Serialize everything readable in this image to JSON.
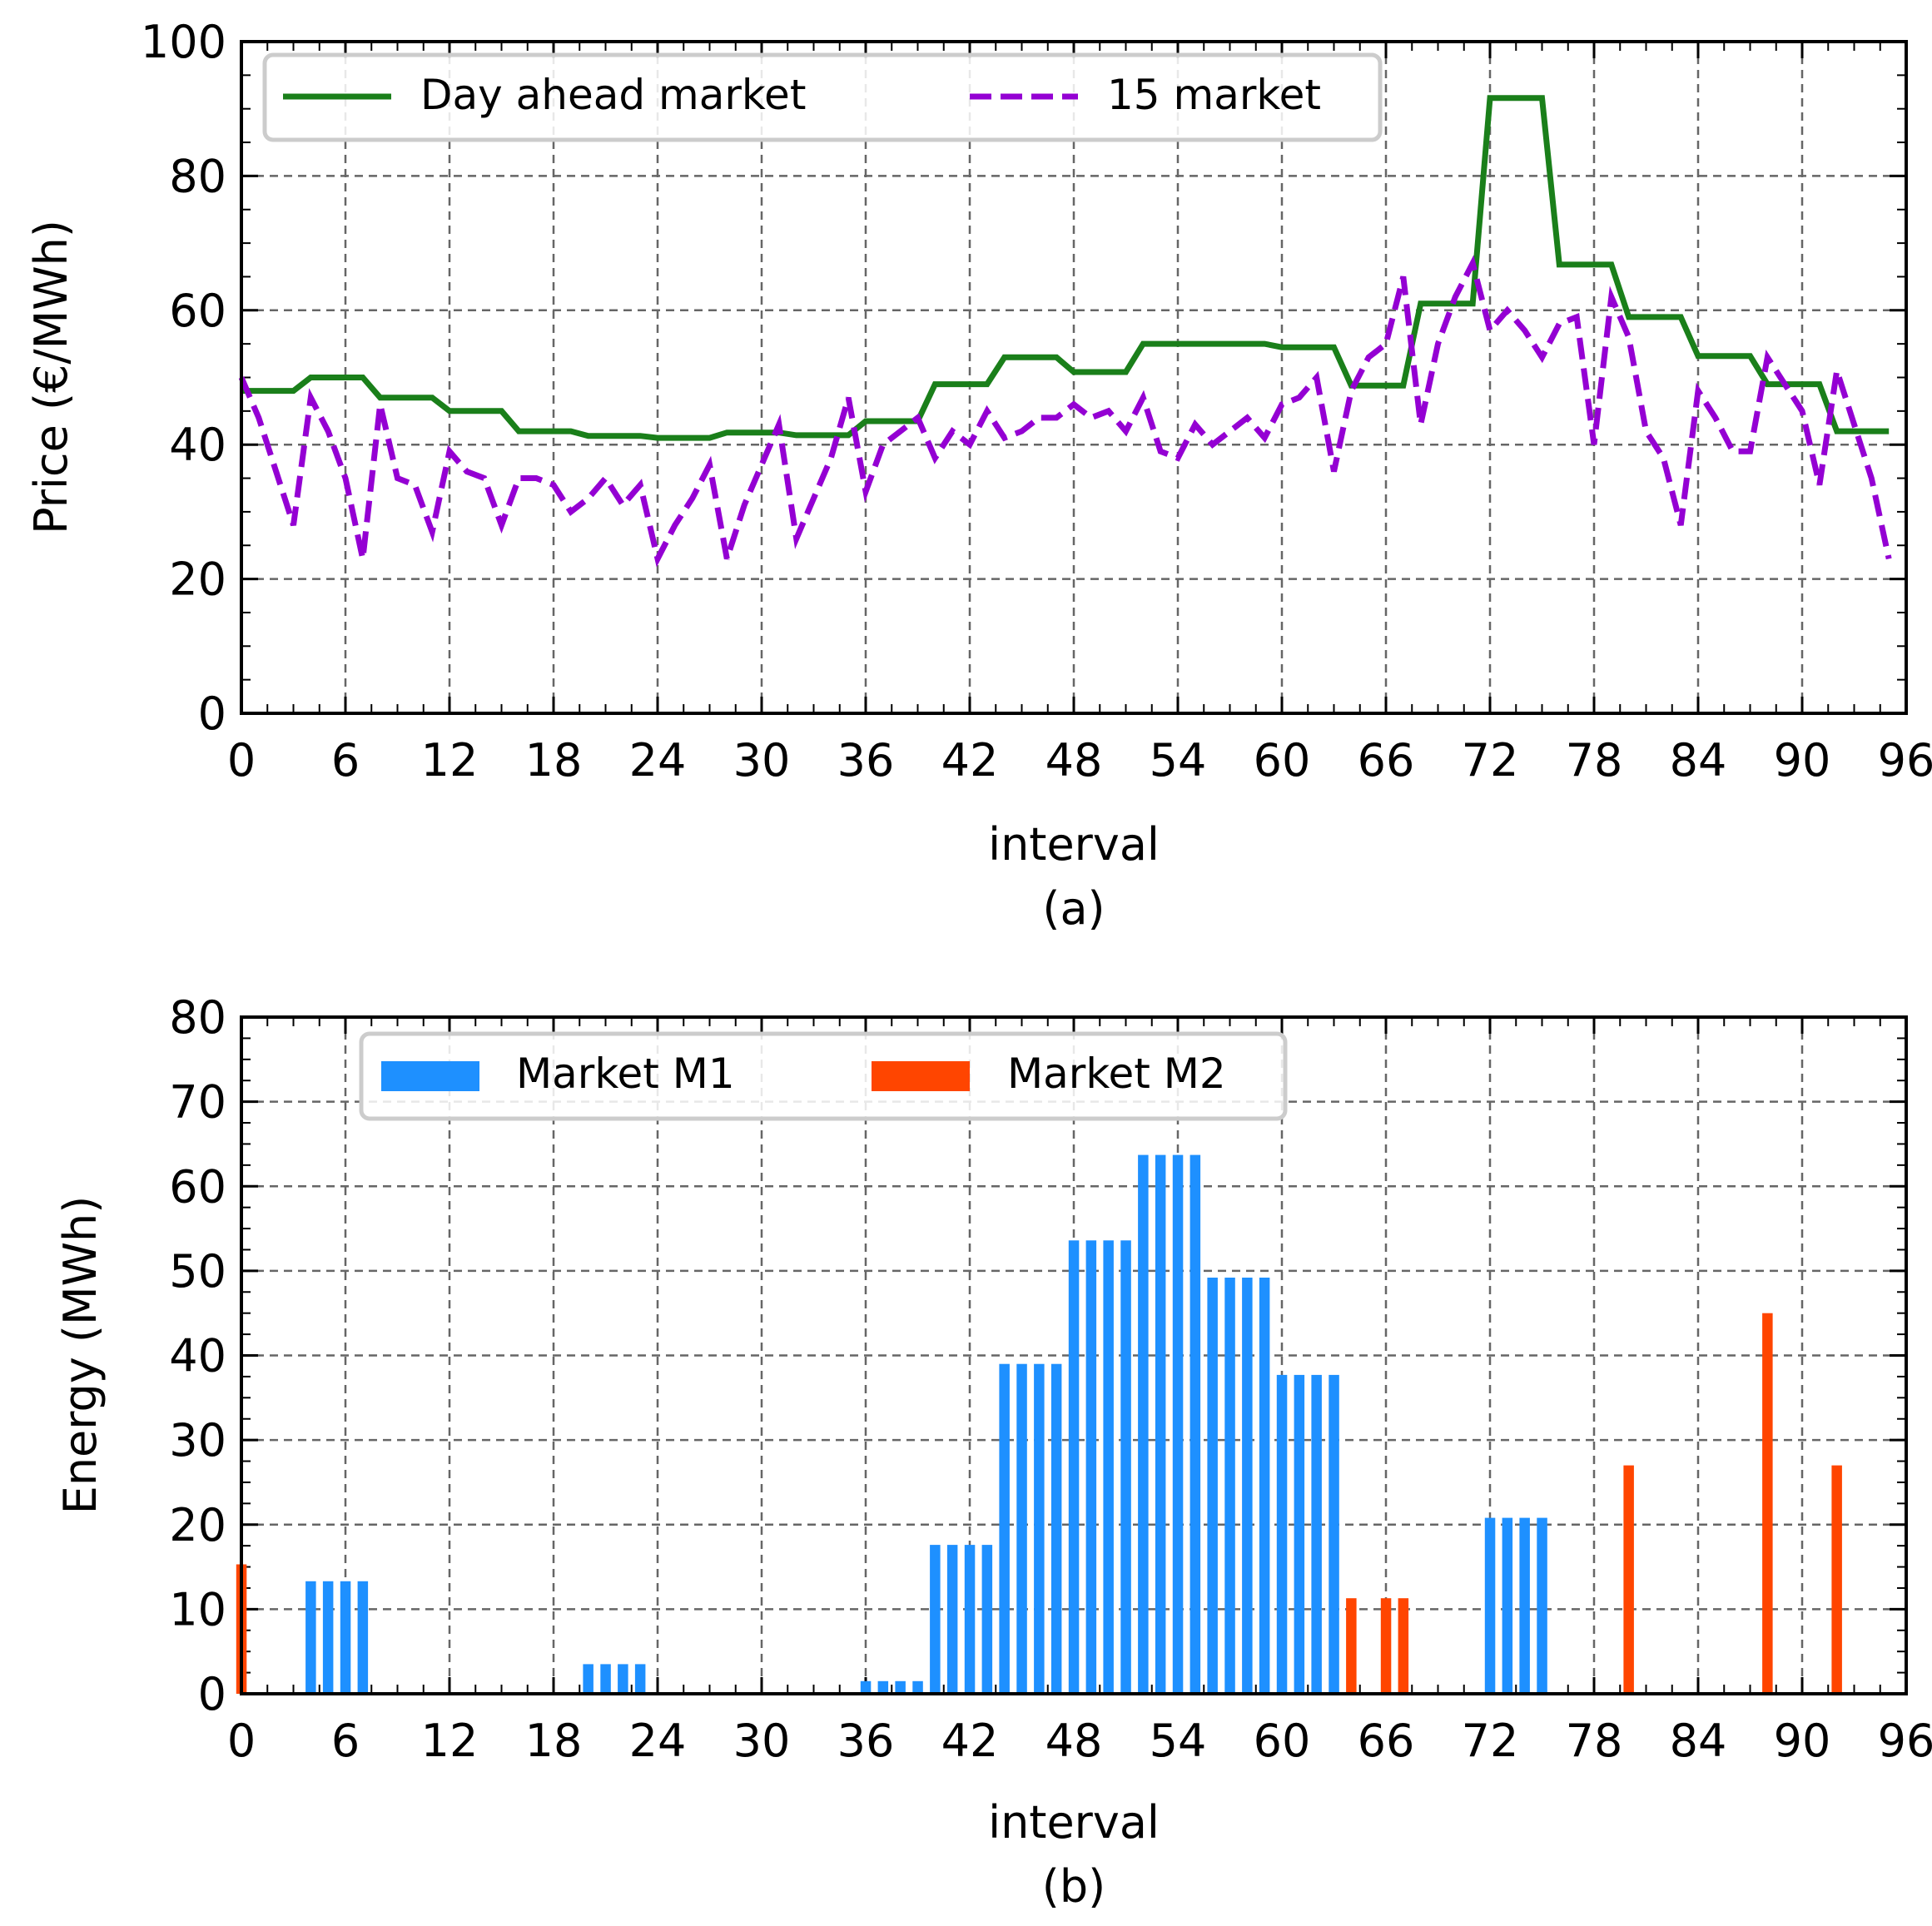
{
  "chart_data": [
    {
      "type": "line",
      "subplot_label": "(a)",
      "title": "",
      "xlabel": "interval",
      "ylabel": "Price (€/MWh)",
      "xlim": [
        0,
        96
      ],
      "ylim": [
        0,
        100
      ],
      "xticks": [
        0,
        6,
        12,
        18,
        24,
        30,
        36,
        42,
        48,
        54,
        60,
        66,
        72,
        78,
        84,
        90,
        96
      ],
      "yticks": [
        0,
        20,
        40,
        60,
        80,
        100
      ],
      "grid": true,
      "legend": "top-left",
      "colors": {
        "day_ahead": "#1a7f1a",
        "fifteen": "#9400d3"
      },
      "series": [
        {
          "name": "Day ahead market",
          "style": "solid",
          "x": [
            0,
            1,
            2,
            3,
            4,
            5,
            6,
            7,
            8,
            9,
            10,
            11,
            12,
            13,
            14,
            15,
            16,
            17,
            18,
            19,
            20,
            21,
            22,
            23,
            24,
            25,
            26,
            27,
            28,
            29,
            30,
            31,
            32,
            33,
            34,
            35,
            36,
            37,
            38,
            39,
            40,
            41,
            42,
            43,
            44,
            45,
            46,
            47,
            48,
            49,
            50,
            51,
            52,
            53,
            54,
            55,
            56,
            57,
            58,
            59,
            60,
            61,
            62,
            63,
            64,
            65,
            66,
            67,
            68,
            69,
            70,
            71,
            72,
            73,
            74,
            75,
            76,
            77,
            78,
            79,
            80,
            81,
            82,
            83,
            84,
            85,
            86,
            87,
            88,
            89,
            90,
            91,
            92,
            93,
            94,
            95
          ],
          "values": [
            48,
            48,
            48,
            48,
            50,
            50,
            50,
            50,
            47,
            47,
            47,
            47,
            45,
            45,
            45,
            45,
            42,
            42,
            42,
            42,
            41.3,
            41.3,
            41.3,
            41.3,
            41,
            41,
            41,
            41,
            41.8,
            41.8,
            41.8,
            41.8,
            41.4,
            41.4,
            41.4,
            41.4,
            43.5,
            43.5,
            43.5,
            43.5,
            49,
            49,
            49,
            49,
            53,
            53,
            53,
            53,
            50.8,
            50.8,
            50.8,
            50.8,
            55,
            55,
            55,
            55,
            55,
            55,
            55,
            55,
            54.5,
            54.5,
            54.5,
            54.5,
            48.8,
            48.8,
            48.8,
            48.8,
            61,
            61,
            61,
            61,
            91.6,
            91.6,
            91.6,
            91.6,
            66.8,
            66.8,
            66.8,
            66.8,
            59,
            59,
            59,
            59,
            53.2,
            53.2,
            53.2,
            53.2,
            49,
            49,
            49,
            49,
            42,
            42,
            42,
            42
          ]
        },
        {
          "name": "15 market",
          "style": "dashed",
          "x": [
            0,
            1,
            2,
            3,
            4,
            5,
            6,
            7,
            8,
            9,
            10,
            11,
            12,
            13,
            14,
            15,
            16,
            17,
            18,
            19,
            20,
            21,
            22,
            23,
            24,
            25,
            26,
            27,
            28,
            29,
            30,
            31,
            32,
            33,
            34,
            35,
            36,
            37,
            38,
            39,
            40,
            41,
            42,
            43,
            44,
            45,
            46,
            47,
            48,
            49,
            50,
            51,
            52,
            53,
            54,
            55,
            56,
            57,
            58,
            59,
            60,
            61,
            62,
            63,
            64,
            65,
            66,
            67,
            68,
            69,
            70,
            71,
            72,
            73,
            74,
            75,
            76,
            77,
            78,
            79,
            80,
            81,
            82,
            83,
            84,
            85,
            86,
            87,
            88,
            89,
            90,
            91,
            92,
            93,
            94,
            95
          ],
          "values": [
            50,
            44,
            36,
            28,
            47,
            42,
            35,
            23,
            46,
            35,
            34,
            27,
            39,
            36,
            35,
            28,
            35,
            35,
            34,
            30,
            32,
            35,
            31,
            34,
            23,
            28,
            32,
            37,
            23,
            31,
            37,
            43,
            26,
            32,
            38,
            47,
            33,
            40,
            42,
            44,
            38,
            42,
            40,
            45,
            41,
            42,
            44,
            44,
            46,
            44,
            45,
            42,
            47,
            39,
            38,
            43,
            40,
            42,
            44,
            41,
            46,
            47,
            50,
            36,
            48,
            53,
            55,
            65,
            43,
            55,
            62,
            67,
            57,
            60,
            57,
            53,
            58,
            59,
            40,
            62,
            56,
            42,
            38,
            28,
            48,
            44,
            39,
            39,
            53,
            49,
            45,
            34,
            51,
            43,
            35,
            23
          ]
        }
      ]
    },
    {
      "type": "bar",
      "subplot_label": "(b)",
      "title": "",
      "xlabel": "interval",
      "ylabel": "Energy (MWh)",
      "xlim": [
        0,
        96
      ],
      "ylim": [
        0,
        80
      ],
      "xticks": [
        0,
        6,
        12,
        18,
        24,
        30,
        36,
        42,
        48,
        54,
        60,
        66,
        72,
        78,
        84,
        90,
        96
      ],
      "yticks": [
        0,
        10,
        20,
        30,
        40,
        50,
        60,
        70,
        80
      ],
      "grid": true,
      "legend": "top-left",
      "colors": {
        "m1": "#1e90ff",
        "m2": "#ff4500"
      },
      "series": [
        {
          "name": "Market M1",
          "x": [
            4,
            5,
            6,
            7,
            20,
            21,
            22,
            23,
            36,
            37,
            38,
            39,
            40,
            41,
            42,
            43,
            44,
            45,
            46,
            47,
            48,
            49,
            50,
            51,
            52,
            53,
            54,
            55,
            56,
            57,
            58,
            59,
            60,
            61,
            62,
            63,
            72,
            73,
            74,
            75
          ],
          "values": [
            13.3,
            13.3,
            13.3,
            13.3,
            3.5,
            3.5,
            3.5,
            3.5,
            1.5,
            1.5,
            1.5,
            1.5,
            17.6,
            17.6,
            17.6,
            17.6,
            39,
            39,
            39,
            39,
            53.6,
            53.6,
            53.6,
            53.6,
            63.7,
            63.7,
            63.7,
            63.7,
            49.2,
            49.2,
            49.2,
            49.2,
            37.7,
            37.7,
            37.7,
            37.7,
            20.8,
            20.8,
            20.8,
            20.8
          ]
        },
        {
          "name": "Market M2",
          "x": [
            0,
            64,
            66,
            67,
            80,
            88,
            92
          ],
          "values": [
            15.3,
            11.3,
            11.3,
            11.3,
            27,
            45,
            27
          ]
        }
      ]
    }
  ]
}
